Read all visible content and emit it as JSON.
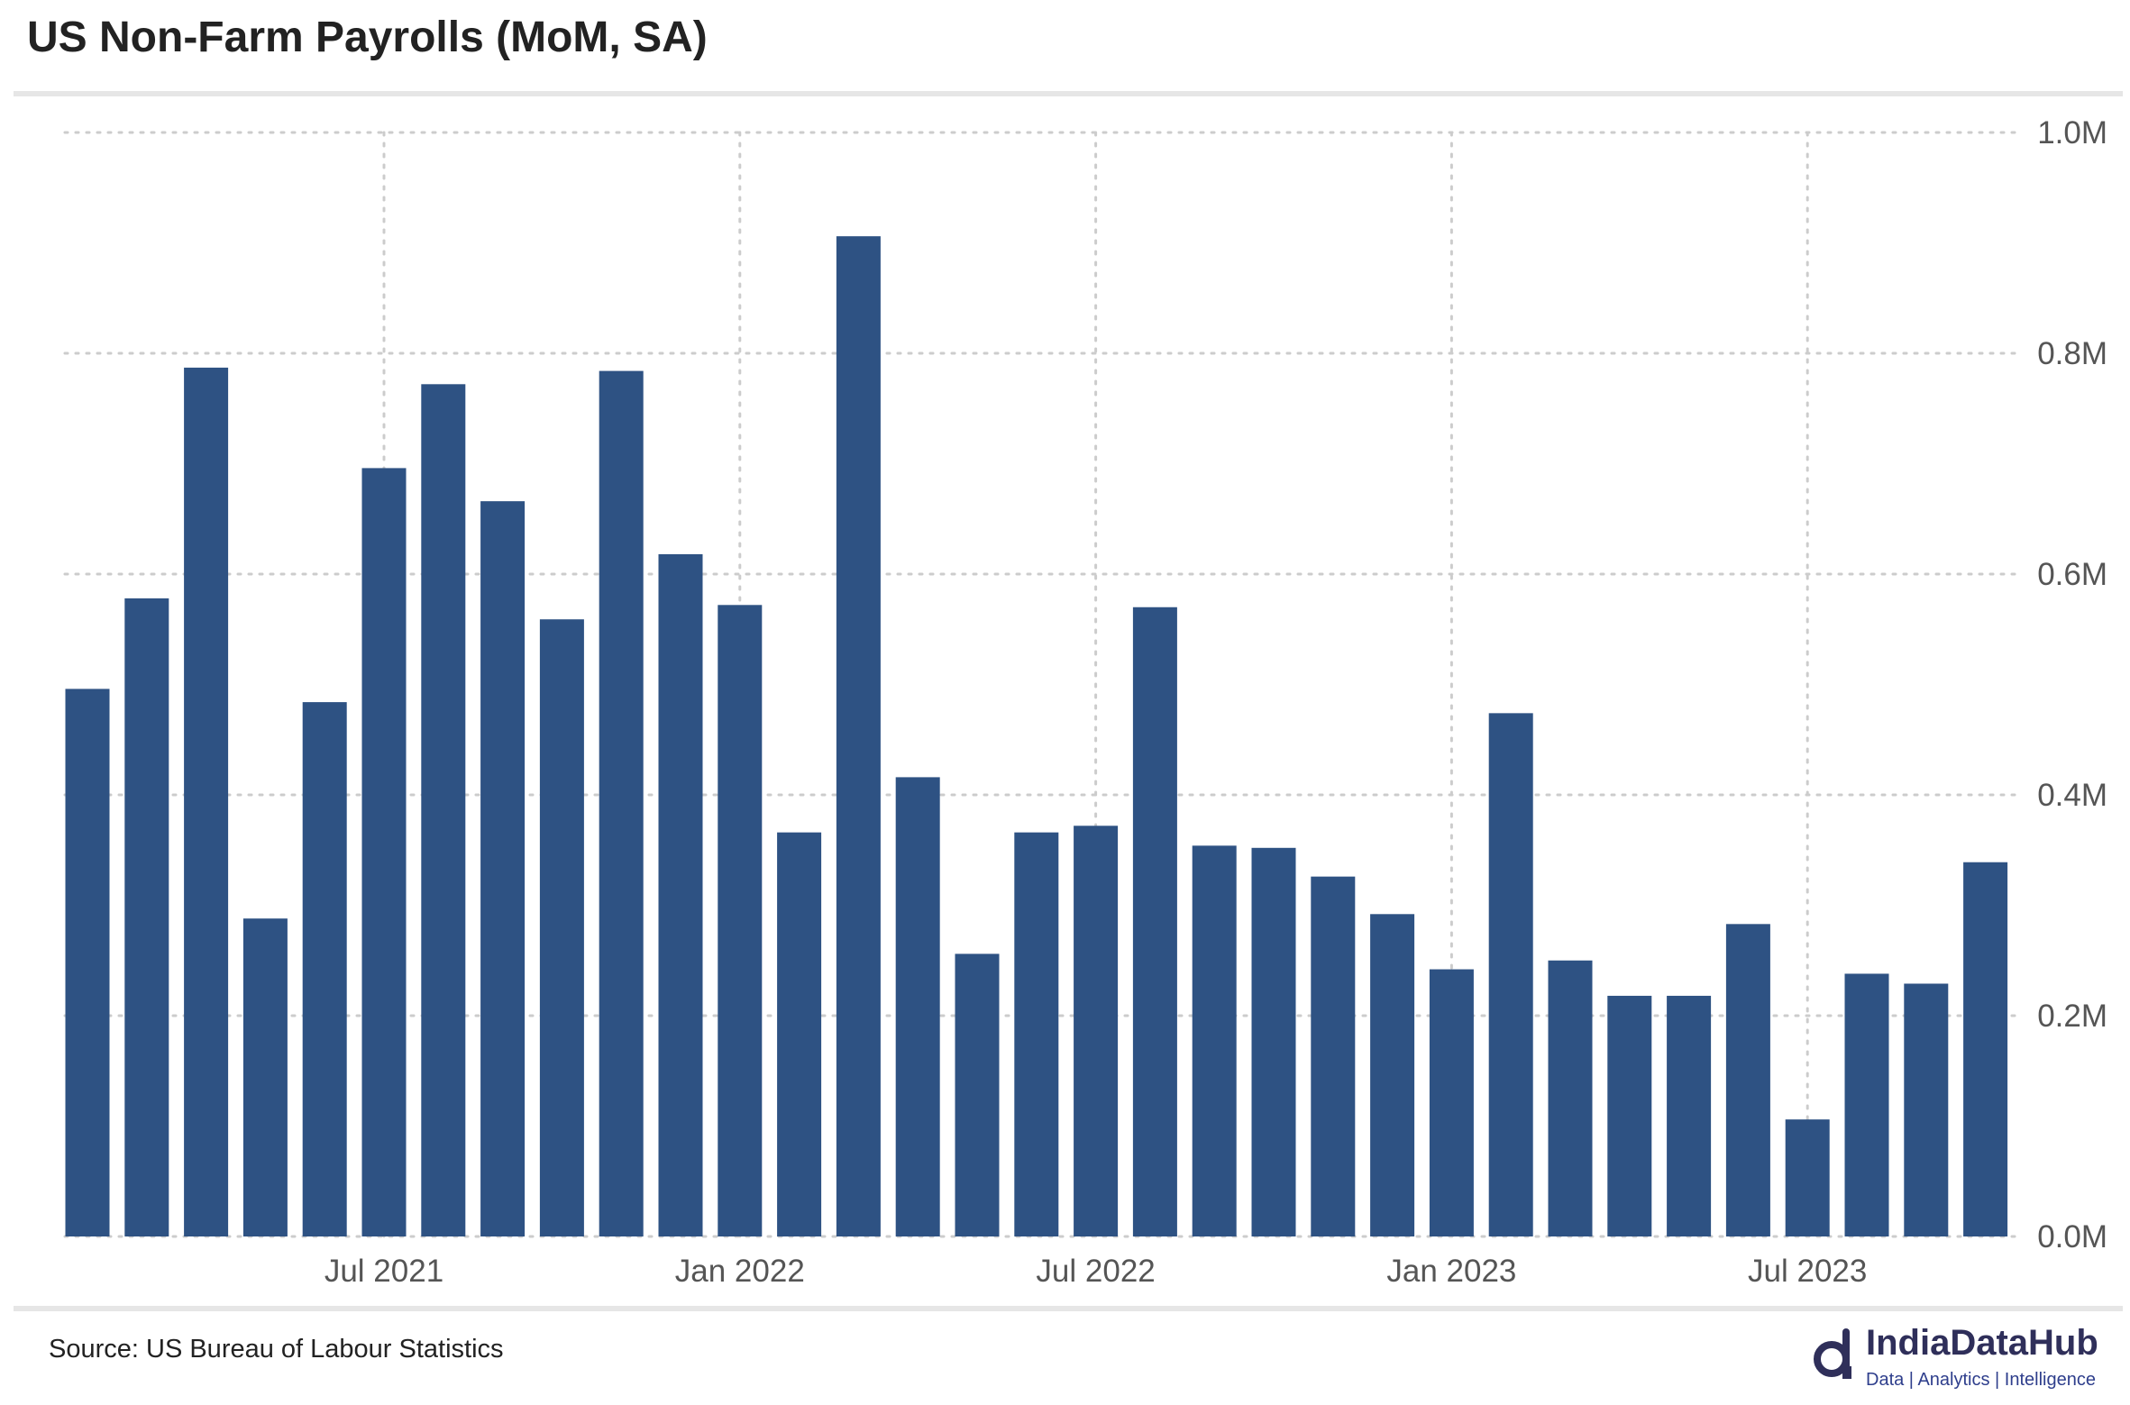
{
  "header": {
    "title": "US Non-Farm Payrolls (MoM, SA)"
  },
  "footer": {
    "source": "Source: US Bureau of Labour Statistics"
  },
  "brand": {
    "name": "IndiaDataHub",
    "tagline": "Data | Analytics | Intelligence",
    "icon": "d-logo-icon"
  },
  "colors": {
    "bar": "#2e5283",
    "grid": "#cccccc",
    "text": "#555555",
    "brand": "#2f2f5a",
    "rule": "#e6e6e6"
  },
  "chart_data": {
    "type": "bar",
    "title": "US Non-Farm Payrolls (MoM, SA)",
    "xlabel": "",
    "ylabel": "",
    "ylim": [
      0,
      1.0
    ],
    "y_unit": "M",
    "grid": true,
    "y_axis_position": "right",
    "y_ticks": [
      {
        "value": 0.0,
        "label": "0.0M"
      },
      {
        "value": 0.2,
        "label": "0.2M"
      },
      {
        "value": 0.4,
        "label": "0.4M"
      },
      {
        "value": 0.6,
        "label": "0.6M"
      },
      {
        "value": 0.8,
        "label": "0.8M"
      },
      {
        "value": 1.0,
        "label": "1.0M"
      }
    ],
    "x_ticks": [
      {
        "category": "Jul 2021",
        "label": "Jul 2021"
      },
      {
        "category": "Jan 2022",
        "label": "Jan 2022"
      },
      {
        "category": "Jul 2022",
        "label": "Jul 2022"
      },
      {
        "category": "Jan 2023",
        "label": "Jan 2023"
      },
      {
        "category": "Jul 2023",
        "label": "Jul 2023"
      }
    ],
    "categories": [
      "Feb 2021",
      "Mar 2021",
      "Apr 2021",
      "May 2021",
      "Jun 2021",
      "Jul 2021",
      "Aug 2021",
      "Sep 2021",
      "Oct 2021",
      "Nov 2021",
      "Dec 2021",
      "Jan 2022",
      "Feb 2022",
      "Mar 2022",
      "Apr 2022",
      "May 2022",
      "Jun 2022",
      "Jul 2022",
      "Aug 2022",
      "Sep 2022",
      "Oct 2022",
      "Nov 2022",
      "Dec 2022",
      "Jan 2023",
      "Feb 2023",
      "Mar 2023",
      "Apr 2023",
      "May 2023",
      "Jun 2023",
      "Jul 2023",
      "Aug 2023",
      "Sep 2023",
      "Oct 2023"
    ],
    "values": [
      0.496,
      0.578,
      0.787,
      0.288,
      0.484,
      0.696,
      0.772,
      0.666,
      0.559,
      0.784,
      0.618,
      0.572,
      0.366,
      0.906,
      0.416,
      0.256,
      0.366,
      0.372,
      0.57,
      0.354,
      0.352,
      0.326,
      0.292,
      0.242,
      0.474,
      0.25,
      0.218,
      0.218,
      0.283,
      0.106,
      0.238,
      0.229,
      0.339
    ]
  }
}
